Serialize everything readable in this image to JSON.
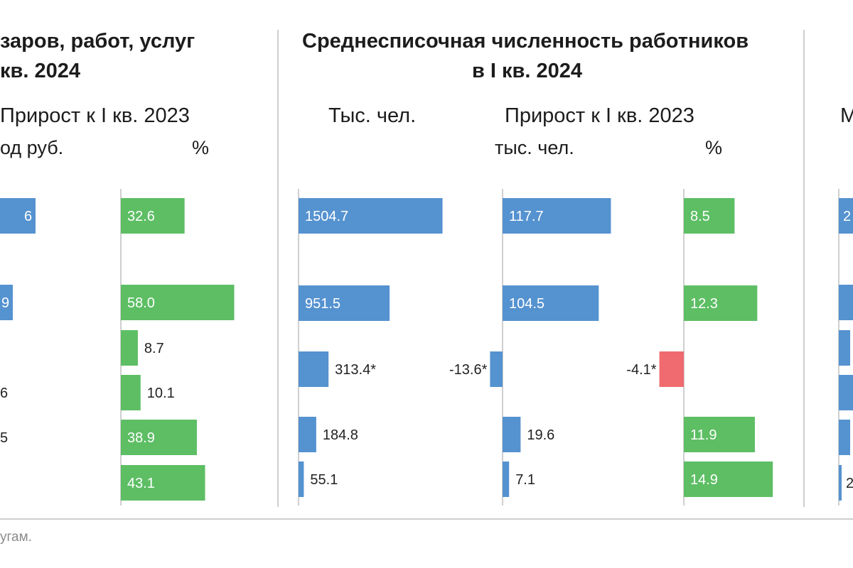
{
  "left_panel": {
    "title_line1": "заров, работ, услуг",
    "title_line2": "кв. 2024",
    "header_growth": "Прирост к I кв. 2023",
    "unit_abs": "од руб.",
    "unit_pct": "%"
  },
  "middle_panel": {
    "title_line1": "Среднесписочная численность работников",
    "title_line2": "в I кв. 2024",
    "header_abs": "Тыс. чел.",
    "header_growth": "Прирост к I кв. 2023",
    "unit_abs": "тыс. чел.",
    "unit_pct": "%"
  },
  "right_panel": {
    "header_fragment": "М"
  },
  "footnote": "угам.",
  "colors": {
    "blue": "#5592d0",
    "green": "#5dbe64",
    "red": "#ef6b6f",
    "axis": "#cfcfcf"
  },
  "chart_data": [
    {
      "type": "bar",
      "orientation": "horizontal",
      "panel": "left",
      "column": "absolute (partially visible)",
      "series": [
        {
          "labels": [
            "6",
            "9",
            "",
            "6",
            "5",
            ""
          ]
        }
      ]
    },
    {
      "type": "bar",
      "orientation": "horizontal",
      "panel": "left",
      "column": "%",
      "series": [
        {
          "values": [
            32.6,
            58.0,
            8.7,
            10.1,
            38.9,
            43.1
          ],
          "labels": [
            "32.6",
            "58.0",
            "8.7",
            "10.1",
            "38.9",
            "43.1"
          ]
        }
      ]
    },
    {
      "type": "bar",
      "orientation": "horizontal",
      "panel": "middle",
      "column": "Тыс. чел.",
      "series": [
        {
          "values": [
            1504.7,
            951.5,
            313.4,
            184.8,
            55.1
          ],
          "labels": [
            "1504.7",
            "951.5",
            "313.4*",
            "184.8",
            "55.1"
          ]
        }
      ]
    },
    {
      "type": "bar",
      "orientation": "horizontal",
      "panel": "middle",
      "column": "тыс. чел.",
      "series": [
        {
          "values": [
            117.7,
            104.5,
            -13.6,
            19.6,
            7.1
          ],
          "labels": [
            "117.7",
            "104.5",
            "-13.6*",
            "19.6",
            "7.1"
          ]
        }
      ]
    },
    {
      "type": "bar",
      "orientation": "horizontal",
      "panel": "middle",
      "column": "%",
      "series": [
        {
          "values": [
            8.5,
            12.3,
            -4.1,
            11.9,
            14.9
          ],
          "labels": [
            "8.5",
            "12.3",
            "-4.1*",
            "11.9",
            "14.9"
          ]
        }
      ]
    },
    {
      "type": "bar",
      "orientation": "horizontal",
      "panel": "right",
      "column": "partially visible",
      "series": [
        {
          "labels": [
            "2",
            "",
            "",
            "",
            "",
            "2"
          ]
        }
      ]
    }
  ]
}
